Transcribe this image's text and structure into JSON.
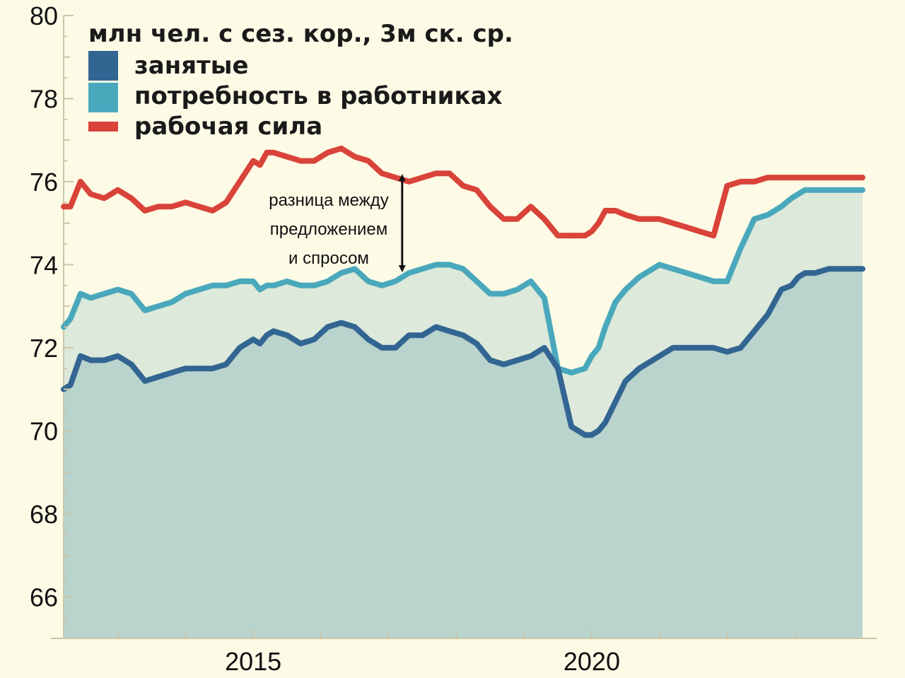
{
  "chart_data": {
    "type": "area",
    "title": "млн чел. с сез. кор., 3м ск. ср.",
    "xlabel": "",
    "ylabel": "",
    "ylim": [
      65,
      80
    ],
    "xlim": [
      2012.2,
      2024.0
    ],
    "y_ticks": [
      66,
      68,
      70,
      72,
      74,
      76,
      78,
      80
    ],
    "x_tick_labels": [
      {
        "x": 2015,
        "label": "2015"
      },
      {
        "x": 2020,
        "label": "2020"
      }
    ],
    "grid": false,
    "legend_position": "top-left",
    "annotation": {
      "lines": [
        "разница между",
        "предложением",
        "и спросом"
      ],
      "x": 2017.2,
      "y_top": 76.2,
      "y_bottom": 73.8
    },
    "series": [
      {
        "name": "занятые",
        "color": "#336592",
        "fill": "#b9d3cd",
        "x": [
          2012.2,
          2012.3,
          2012.45,
          2012.6,
          2012.8,
          2013.0,
          2013.2,
          2013.4,
          2013.6,
          2013.8,
          2014.0,
          2014.2,
          2014.4,
          2014.6,
          2014.8,
          2015.0,
          2015.1,
          2015.2,
          2015.3,
          2015.5,
          2015.7,
          2015.9,
          2016.1,
          2016.3,
          2016.5,
          2016.7,
          2016.9,
          2017.1,
          2017.3,
          2017.5,
          2017.7,
          2017.9,
          2018.1,
          2018.3,
          2018.5,
          2018.7,
          2018.9,
          2019.1,
          2019.3,
          2019.5,
          2019.7,
          2019.9,
          2020.0,
          2020.1,
          2020.2,
          2020.35,
          2020.5,
          2020.7,
          2020.9,
          2021.0,
          2021.2,
          2021.4,
          2021.6,
          2021.8,
          2022.0,
          2022.2,
          2022.4,
          2022.6,
          2022.8,
          2022.95,
          2023.05,
          2023.15,
          2023.3,
          2023.5,
          2023.7,
          2023.85,
          2024.0
        ],
        "values": [
          71.0,
          71.1,
          71.8,
          71.7,
          71.7,
          71.8,
          71.6,
          71.2,
          71.3,
          71.4,
          71.5,
          71.5,
          71.5,
          71.6,
          72.0,
          72.2,
          72.1,
          72.3,
          72.4,
          72.3,
          72.1,
          72.2,
          72.5,
          72.6,
          72.5,
          72.2,
          72.0,
          72.0,
          72.3,
          72.3,
          72.5,
          72.4,
          72.3,
          72.1,
          71.7,
          71.6,
          71.7,
          71.8,
          72.0,
          71.5,
          70.1,
          69.9,
          69.9,
          70.0,
          70.2,
          70.7,
          71.2,
          71.5,
          71.7,
          71.8,
          72.0,
          72.0,
          72.0,
          72.0,
          71.9,
          72.0,
          72.4,
          72.8,
          73.4,
          73.5,
          73.7,
          73.8,
          73.8,
          73.9,
          73.9,
          73.9,
          73.9
        ]
      },
      {
        "name": "потребность в работниках",
        "color": "#4aa8bc",
        "fill": "#dde9da",
        "x": [
          2012.2,
          2012.3,
          2012.45,
          2012.6,
          2012.8,
          2013.0,
          2013.2,
          2013.4,
          2013.6,
          2013.8,
          2014.0,
          2014.2,
          2014.4,
          2014.6,
          2014.8,
          2015.0,
          2015.1,
          2015.2,
          2015.3,
          2015.5,
          2015.7,
          2015.9,
          2016.1,
          2016.3,
          2016.5,
          2016.7,
          2016.9,
          2017.1,
          2017.3,
          2017.5,
          2017.7,
          2017.9,
          2018.1,
          2018.3,
          2018.5,
          2018.7,
          2018.9,
          2019.1,
          2019.3,
          2019.5,
          2019.7,
          2019.9,
          2020.0,
          2020.1,
          2020.2,
          2020.35,
          2020.5,
          2020.7,
          2020.9,
          2021.0,
          2021.2,
          2021.4,
          2021.6,
          2021.8,
          2022.0,
          2022.2,
          2022.4,
          2022.6,
          2022.8,
          2022.95,
          2023.05,
          2023.15,
          2023.3,
          2023.5,
          2023.7,
          2023.85,
          2024.0
        ],
        "values": [
          72.5,
          72.7,
          73.3,
          73.2,
          73.3,
          73.4,
          73.3,
          72.9,
          73.0,
          73.1,
          73.3,
          73.4,
          73.5,
          73.5,
          73.6,
          73.6,
          73.4,
          73.5,
          73.5,
          73.6,
          73.5,
          73.5,
          73.6,
          73.8,
          73.9,
          73.6,
          73.5,
          73.6,
          73.8,
          73.9,
          74.0,
          74.0,
          73.9,
          73.6,
          73.3,
          73.3,
          73.4,
          73.6,
          73.2,
          71.5,
          71.4,
          71.5,
          71.8,
          72.0,
          72.5,
          73.1,
          73.4,
          73.7,
          73.9,
          74.0,
          73.9,
          73.8,
          73.7,
          73.6,
          73.6,
          74.4,
          75.1,
          75.2,
          75.4,
          75.6,
          75.7,
          75.8,
          75.8,
          75.8,
          75.8,
          75.8,
          75.8
        ]
      },
      {
        "name": "рабочая сила",
        "color": "#d9433a",
        "x": [
          2012.2,
          2012.3,
          2012.45,
          2012.6,
          2012.8,
          2013.0,
          2013.2,
          2013.4,
          2013.6,
          2013.8,
          2014.0,
          2014.2,
          2014.4,
          2014.6,
          2014.8,
          2015.0,
          2015.1,
          2015.2,
          2015.3,
          2015.5,
          2015.7,
          2015.9,
          2016.1,
          2016.3,
          2016.5,
          2016.7,
          2016.9,
          2017.1,
          2017.3,
          2017.5,
          2017.7,
          2017.9,
          2018.1,
          2018.3,
          2018.5,
          2018.7,
          2018.9,
          2019.1,
          2019.3,
          2019.5,
          2019.7,
          2019.9,
          2020.0,
          2020.1,
          2020.2,
          2020.35,
          2020.5,
          2020.7,
          2020.9,
          2021.0,
          2021.2,
          2021.4,
          2021.6,
          2021.8,
          2022.0,
          2022.2,
          2022.4,
          2022.6,
          2022.8,
          2022.95,
          2023.05,
          2023.15,
          2023.3,
          2023.5,
          2023.7,
          2023.85,
          2024.0
        ],
        "values": [
          75.4,
          75.4,
          76.0,
          75.7,
          75.6,
          75.8,
          75.6,
          75.3,
          75.4,
          75.4,
          75.5,
          75.4,
          75.3,
          75.5,
          76.0,
          76.5,
          76.4,
          76.7,
          76.7,
          76.6,
          76.5,
          76.5,
          76.7,
          76.8,
          76.6,
          76.5,
          76.2,
          76.1,
          76.0,
          76.1,
          76.2,
          76.2,
          75.9,
          75.8,
          75.4,
          75.1,
          75.1,
          75.4,
          75.1,
          74.7,
          74.7,
          74.7,
          74.8,
          75.0,
          75.3,
          75.3,
          75.2,
          75.1,
          75.1,
          75.1,
          75.0,
          74.9,
          74.8,
          74.7,
          75.9,
          76.0,
          76.0,
          76.1,
          76.1,
          76.1,
          76.1,
          76.1,
          76.1,
          76.1,
          76.1,
          76.1,
          76.1
        ]
      }
    ]
  }
}
